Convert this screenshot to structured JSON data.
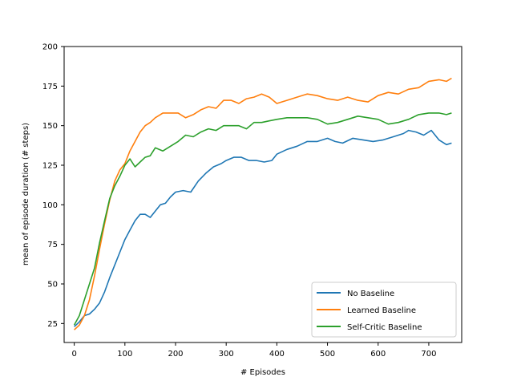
{
  "chart_data": {
    "type": "line",
    "title": "",
    "xlabel": "# Episodes",
    "ylabel": "mean of episode duration (# steps)",
    "xlim": [
      -20,
      765
    ],
    "ylim": [
      13,
      200
    ],
    "xticks": [
      0,
      100,
      200,
      300,
      400,
      500,
      600,
      700
    ],
    "yticks": [
      25,
      50,
      75,
      100,
      125,
      150,
      175,
      200
    ],
    "grid": false,
    "legend_position": "lower-right",
    "series": [
      {
        "name": "No Baseline",
        "color": "#1f77b4",
        "x": [
          0,
          10,
          20,
          30,
          40,
          50,
          60,
          70,
          80,
          90,
          100,
          110,
          120,
          130,
          140,
          150,
          160,
          170,
          180,
          190,
          200,
          215,
          230,
          245,
          260,
          275,
          290,
          300,
          315,
          330,
          345,
          360,
          375,
          390,
          400,
          420,
          440,
          460,
          480,
          500,
          515,
          530,
          550,
          570,
          590,
          610,
          630,
          650,
          660,
          675,
          690,
          705,
          720,
          735,
          745
        ],
        "y": [
          23,
          26,
          30,
          31,
          34,
          38,
          45,
          54,
          62,
          70,
          78,
          84,
          90,
          94,
          94,
          92,
          96,
          100,
          101,
          105,
          108,
          109,
          108,
          115,
          120,
          124,
          126,
          128,
          130,
          130,
          128,
          128,
          127,
          128,
          132,
          135,
          137,
          140,
          140,
          142,
          140,
          139,
          142,
          141,
          140,
          141,
          143,
          145,
          147,
          146,
          144,
          147,
          141,
          138,
          139
        ]
      },
      {
        "name": "Learned Baseline",
        "color": "#ff7f0e",
        "x": [
          0,
          10,
          20,
          30,
          40,
          50,
          60,
          70,
          80,
          90,
          100,
          110,
          120,
          130,
          140,
          150,
          160,
          175,
          190,
          205,
          220,
          235,
          250,
          265,
          280,
          295,
          310,
          325,
          340,
          355,
          370,
          385,
          400,
          420,
          440,
          460,
          480,
          500,
          520,
          540,
          560,
          580,
          600,
          620,
          640,
          660,
          680,
          700,
          720,
          735,
          745
        ],
        "y": [
          21,
          24,
          30,
          40,
          55,
          72,
          88,
          103,
          115,
          122,
          126,
          134,
          140,
          146,
          150,
          152,
          155,
          158,
          158,
          158,
          155,
          157,
          160,
          162,
          161,
          166,
          166,
          164,
          167,
          168,
          170,
          168,
          164,
          166,
          168,
          170,
          169,
          167,
          166,
          168,
          166,
          165,
          169,
          171,
          170,
          173,
          174,
          178,
          179,
          178,
          180
        ]
      },
      {
        "name": "Self-Critic Baseline",
        "color": "#2ca02c",
        "x": [
          0,
          10,
          20,
          30,
          40,
          50,
          60,
          70,
          80,
          90,
          100,
          110,
          120,
          130,
          140,
          150,
          160,
          175,
          190,
          205,
          220,
          235,
          250,
          265,
          280,
          295,
          310,
          325,
          340,
          355,
          370,
          385,
          400,
          420,
          440,
          460,
          480,
          500,
          520,
          540,
          560,
          580,
          600,
          620,
          640,
          660,
          680,
          700,
          720,
          735,
          745
        ],
        "y": [
          24,
          30,
          40,
          50,
          60,
          76,
          90,
          104,
          112,
          118,
          125,
          129,
          124,
          127,
          130,
          131,
          136,
          134,
          137,
          140,
          144,
          143,
          146,
          148,
          147,
          150,
          150,
          150,
          148,
          152,
          152,
          153,
          154,
          155,
          155,
          155,
          154,
          151,
          152,
          154,
          156,
          155,
          154,
          151,
          152,
          154,
          157,
          158,
          158,
          157,
          158
        ]
      }
    ]
  }
}
